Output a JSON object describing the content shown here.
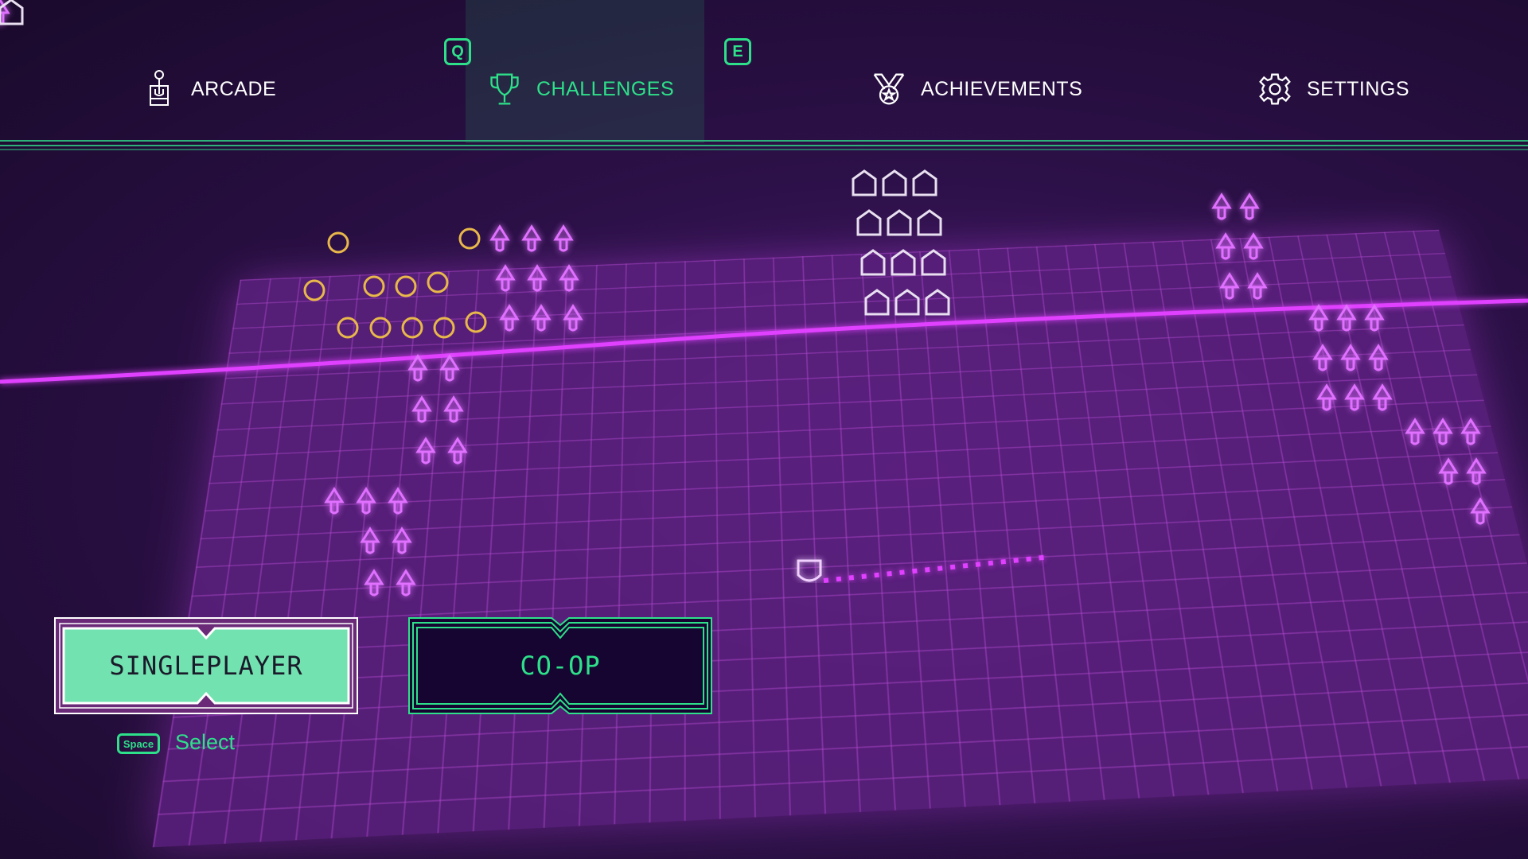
{
  "nav": {
    "items": [
      {
        "label": "ARCADE",
        "icon": "joystick-icon",
        "active": false
      },
      {
        "label": "CHALLENGES",
        "icon": "trophy-icon",
        "active": true
      },
      {
        "label": "ACHIEVEMENTS",
        "icon": "medal-icon",
        "active": false
      },
      {
        "label": "SETTINGS",
        "icon": "gear-icon",
        "active": false
      }
    ],
    "prev_key": "Q",
    "next_key": "E"
  },
  "modes": {
    "singleplayer": "SINGLEPLAYER",
    "coop": "CO-OP",
    "selected": "SINGLEPLAYER"
  },
  "hint": {
    "key": "Space",
    "label": "Select"
  },
  "colors": {
    "accent": "#2ee08a",
    "background": "#1e0b33",
    "grid": "#c850e6",
    "selected_fill": "#72e3b0"
  }
}
